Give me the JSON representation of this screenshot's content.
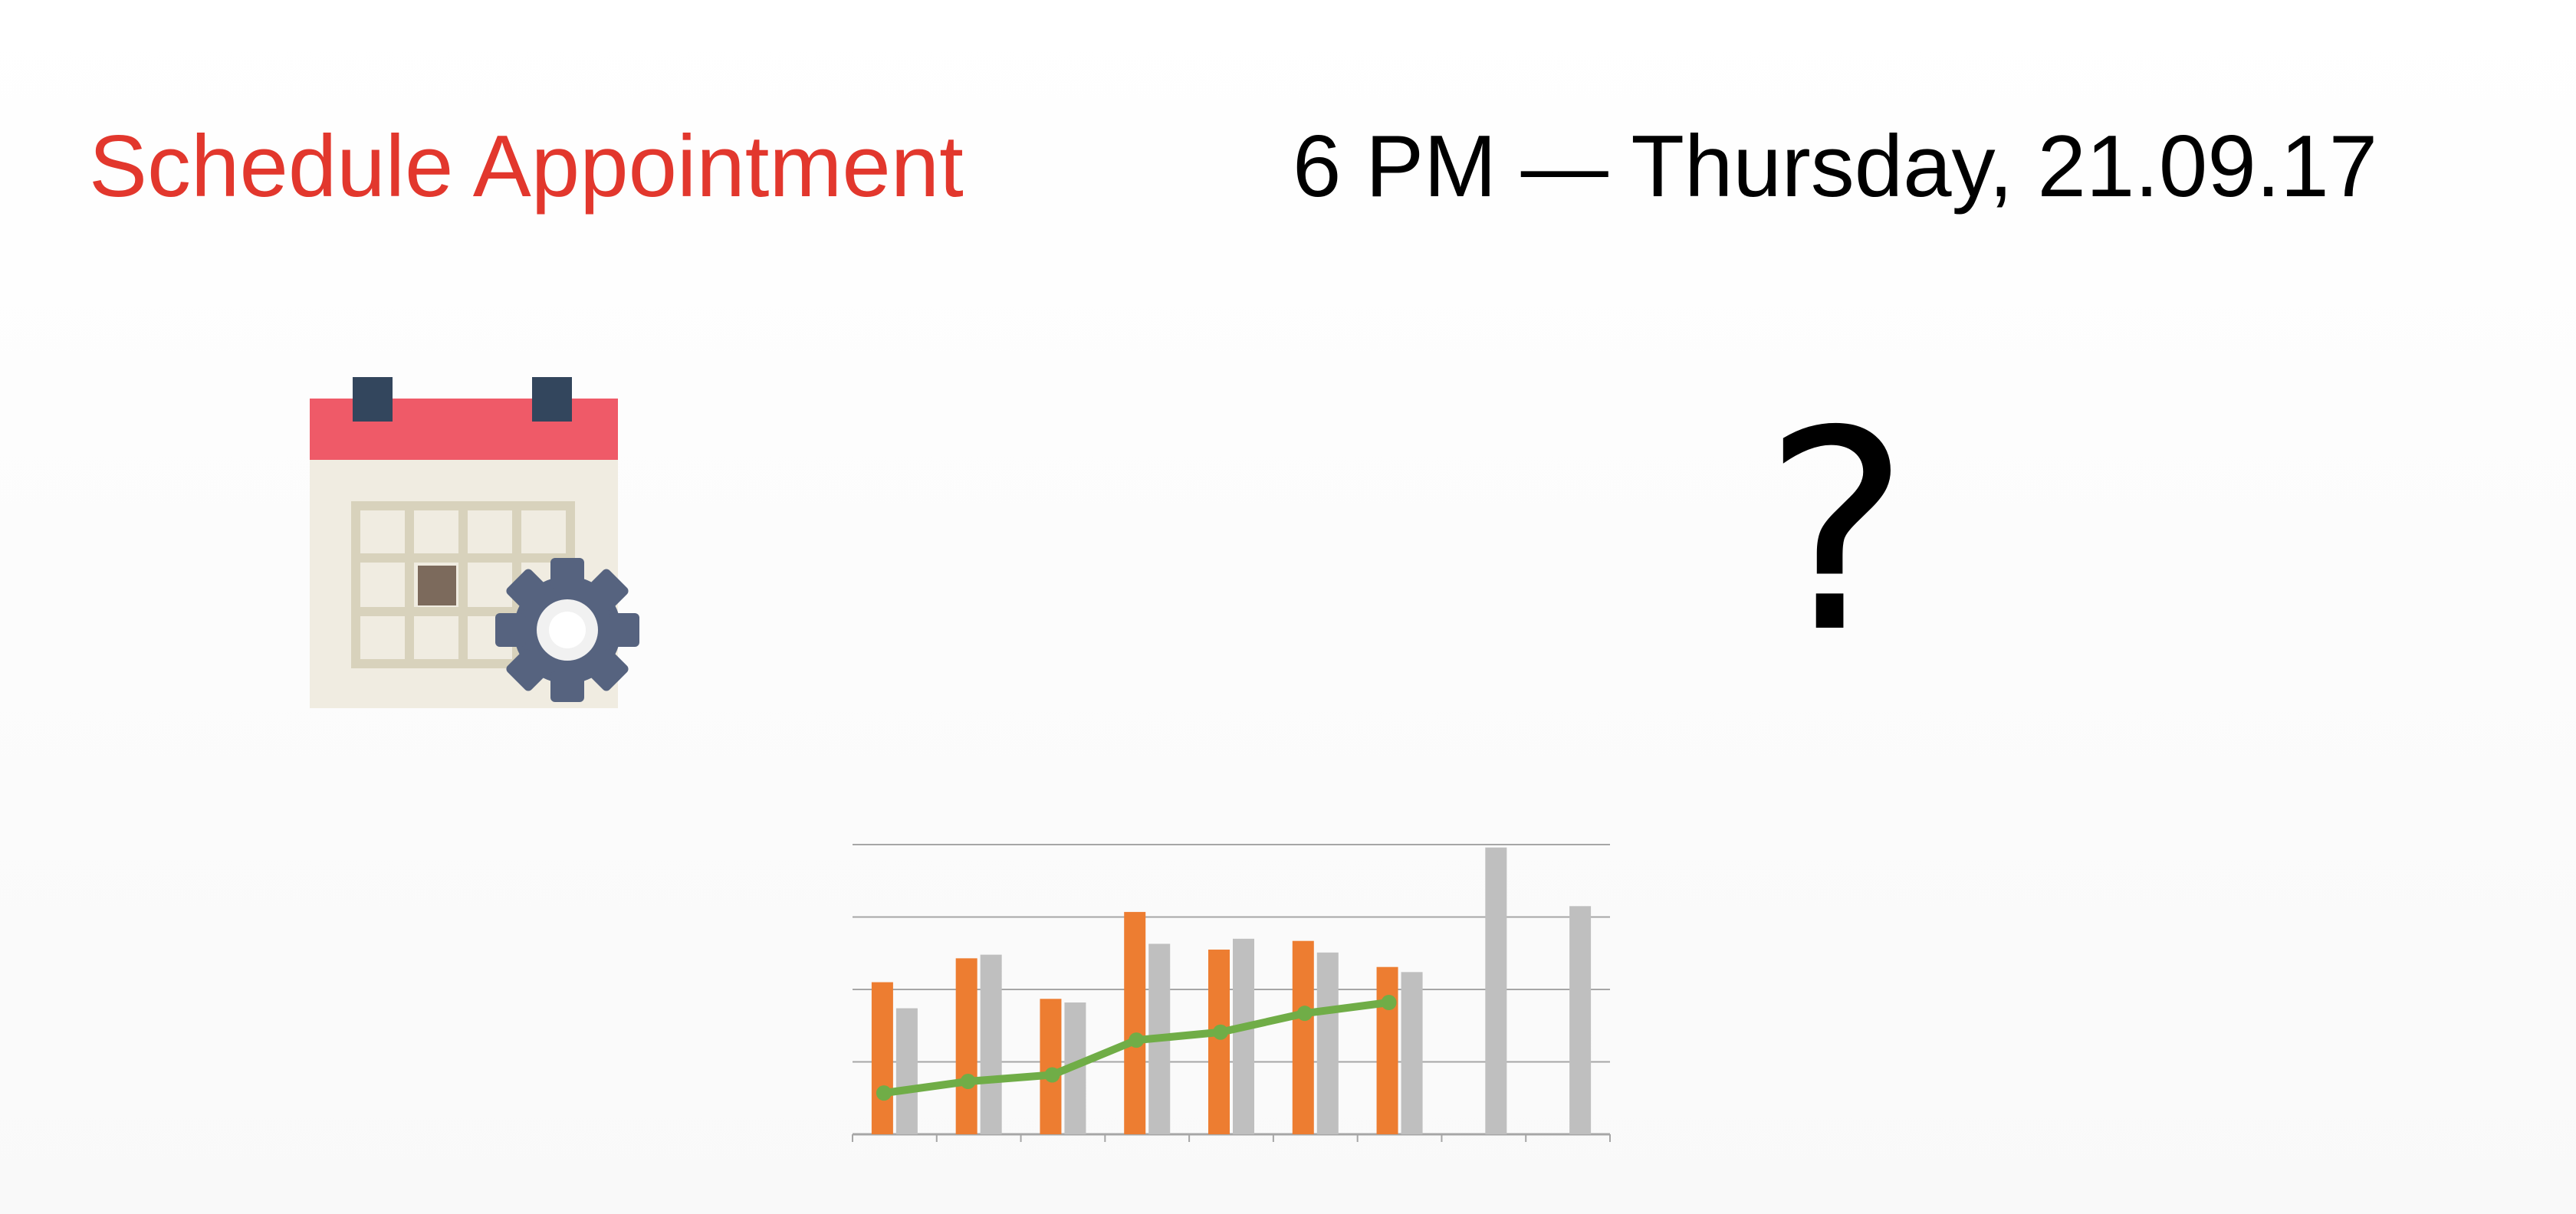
{
  "slide": {
    "title": "Schedule Appointment",
    "datetime": "6 PM — Thursday, 21.09.17",
    "question": "?"
  },
  "colors": {
    "title": "#e2372d",
    "datetime": "#000000",
    "question": "#000000"
  },
  "icons": {
    "calendar": "calendar-gear-icon"
  },
  "chart_data": {
    "type": "bar",
    "categories": [
      "",
      "",
      "",
      "",
      "",
      "",
      "",
      "",
      ""
    ],
    "series": [
      {
        "type": "bar",
        "color": "#ed7d31",
        "values": [
          2.1,
          2.43,
          1.87,
          3.07,
          2.55,
          2.67,
          2.31,
          null,
          null
        ]
      },
      {
        "type": "bar",
        "color": "#bfbfbf",
        "values": [
          1.74,
          2.48,
          1.82,
          2.63,
          2.7,
          2.51,
          2.24,
          3.96,
          3.15
        ]
      },
      {
        "type": "line",
        "color": "#70ad47",
        "values": [
          0.57,
          0.73,
          0.82,
          1.3,
          1.41,
          1.67,
          1.82,
          null,
          null
        ]
      }
    ],
    "ylim": [
      0,
      4
    ],
    "grid": true,
    "legend": "none"
  }
}
